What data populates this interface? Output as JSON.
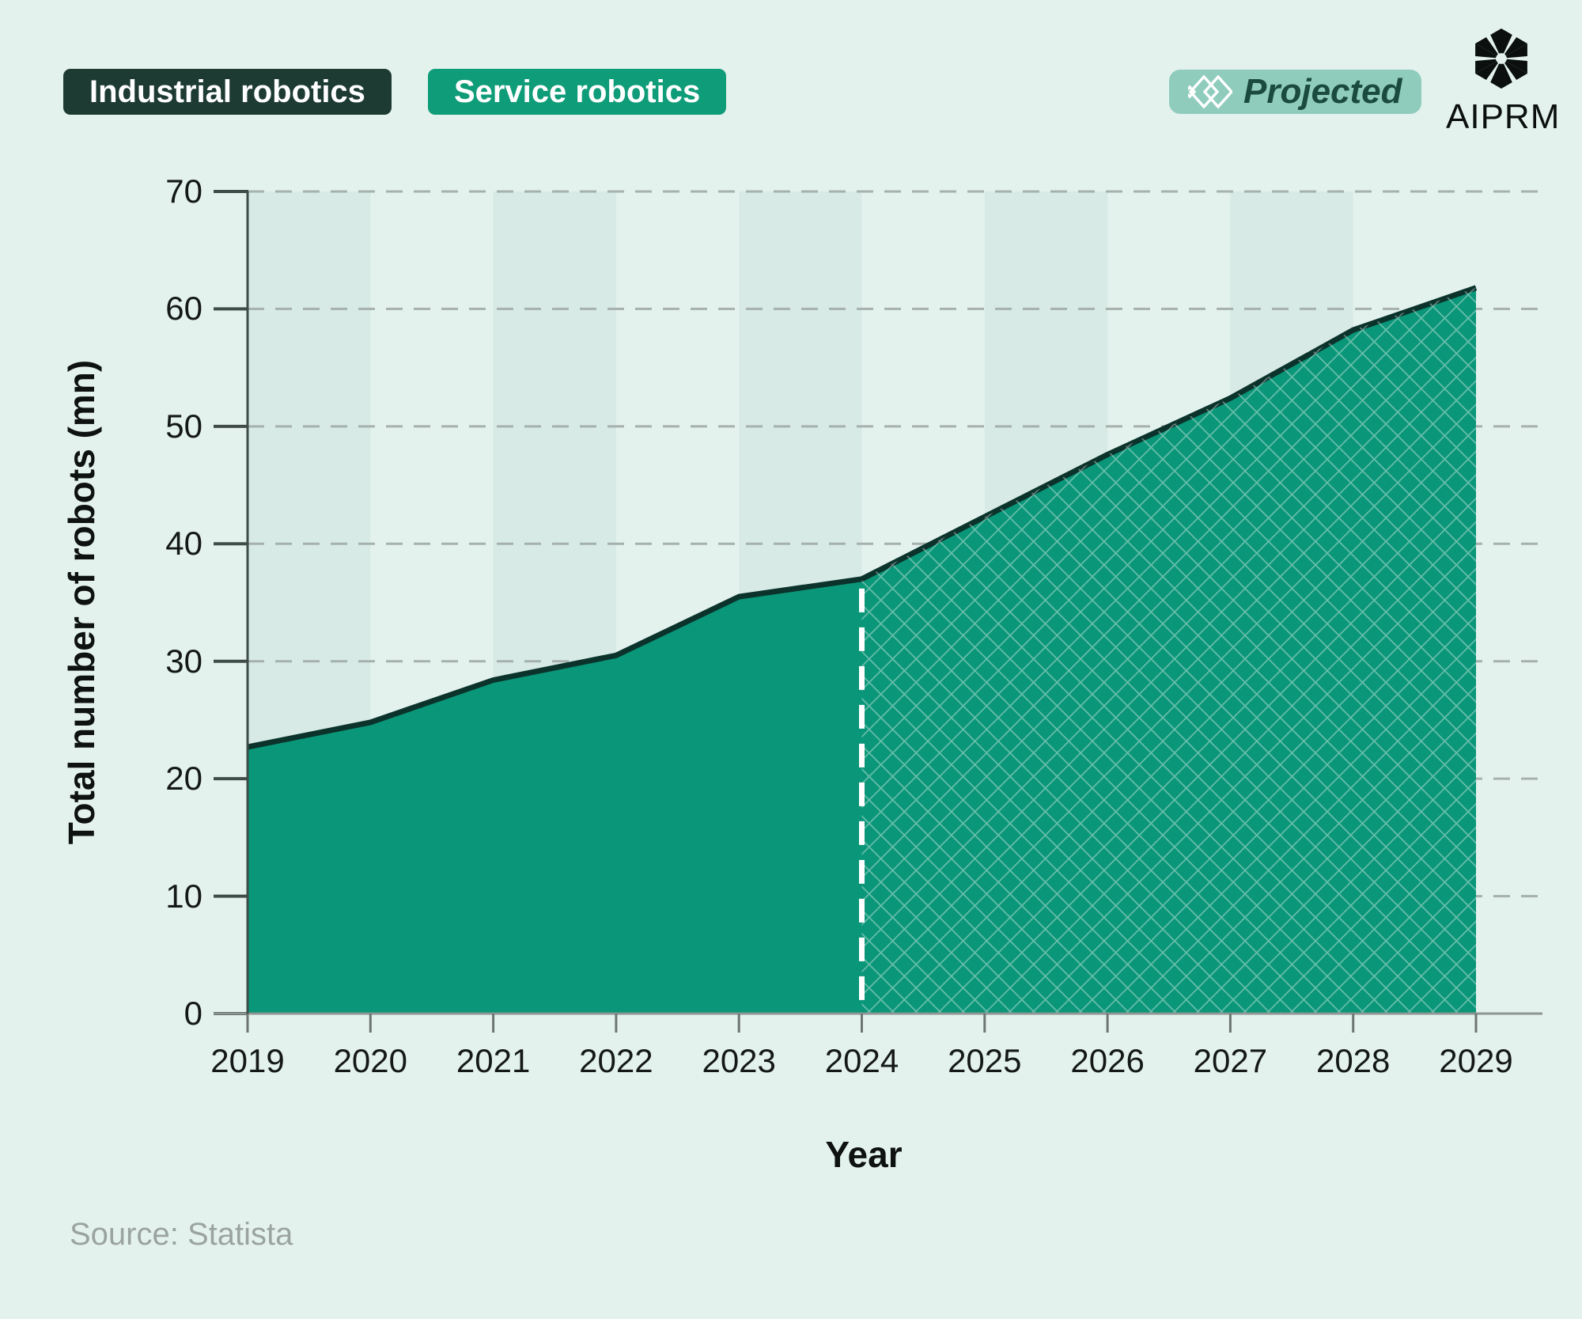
{
  "header": {
    "legend": [
      {
        "label": "Industrial robotics",
        "bg": "#1d3a33",
        "text_color": "#ffffff"
      },
      {
        "label": "Service robotics",
        "bg": "#0f9c78",
        "text_color": "#ffffff"
      }
    ],
    "projected": {
      "label": "Projected",
      "bg": "#8fccbc",
      "text_color": "#1b4a3e",
      "icon": "crosshatch-icon"
    },
    "brand": {
      "name": "AIPRM",
      "icon": "aiprm-gem-icon",
      "color": "#0b100e"
    }
  },
  "chart_data": {
    "type": "area",
    "title": "",
    "x": [
      2019,
      2020,
      2021,
      2022,
      2023,
      2024,
      2025,
      2026,
      2027,
      2028,
      2029
    ],
    "series": [
      {
        "name": "Total number of robots (mn)",
        "values": [
          22.7,
          24.8,
          28.4,
          30.5,
          35.5,
          37.0,
          42.3,
          47.6,
          52.4,
          58.2,
          61.8
        ]
      }
    ],
    "projected_from": 2024,
    "xlabel": "Year",
    "ylabel": "Total number of robots (mn)",
    "ylim": [
      0,
      70
    ],
    "yticks": [
      0,
      10,
      20,
      30,
      40,
      50,
      60,
      70
    ],
    "grid": "dashed-horizontal-gridlines",
    "banded_year_spans": [
      [
        2019,
        2020
      ],
      [
        2021,
        2022
      ],
      [
        2023,
        2024
      ],
      [
        2025,
        2026
      ],
      [
        2027,
        2028
      ]
    ],
    "legend_position": "top-left",
    "projected_style": "diamond-crosshatch-with-white-dashed-divider",
    "colors": {
      "background": "#e4f2ee",
      "band": "#d7eae5",
      "grid": "#a6b1ad",
      "axis": "#3f4c48",
      "baseline": "#8d9693",
      "xtick_mark": "#6c7572",
      "area_fill": "#0a9678",
      "top_line": "#0b332c",
      "hatch_line": "rgba(255,255,255,0.38)",
      "divider": "#ffffff",
      "tick_text": "#141917"
    }
  },
  "source": {
    "label": "Source: Statista"
  }
}
